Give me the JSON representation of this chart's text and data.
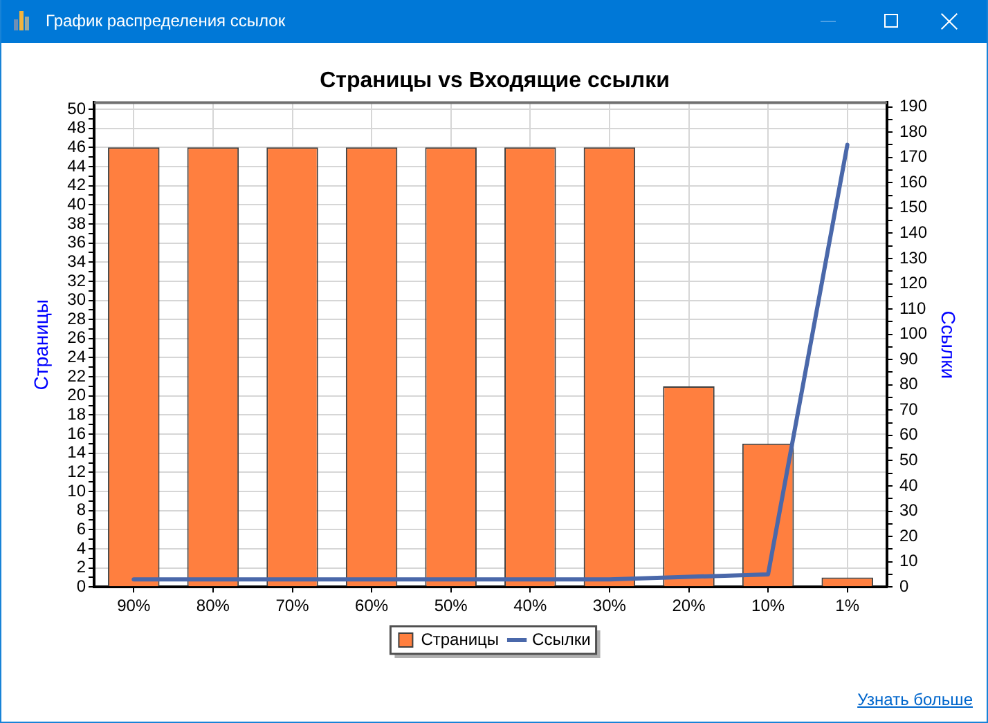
{
  "chart_data": {
    "type": "bar",
    "title": "Страницы vs Входящие ссылки",
    "ylabel": "Страницы",
    "y2label": "Ссылки",
    "categories": [
      "90%",
      "80%",
      "70%",
      "60%",
      "50%",
      "40%",
      "30%",
      "20%",
      "10%",
      "1%"
    ],
    "series": [
      {
        "name": "Страницы",
        "color": "#ff7f3f",
        "values": [
          46,
          46,
          46,
          46,
          46,
          46,
          46,
          21,
          15,
          1
        ]
      },
      {
        "name": "Ссылки",
        "type": "line",
        "axis": "y2",
        "color": "#4a68aa",
        "values": [
          3,
          3,
          3,
          3,
          3,
          3,
          3,
          4,
          5,
          175
        ]
      }
    ],
    "ylim": [
      0,
      50.7
    ],
    "yticks": [
      0,
      {
        "value": 1,
        "label": null
      },
      2,
      {
        "value": 3,
        "label": null
      },
      4,
      {
        "value": 5,
        "label": null
      },
      6,
      {
        "value": 7,
        "label": null
      },
      8,
      {
        "value": 9,
        "label": null
      },
      10,
      {
        "value": 11,
        "label": null
      },
      12,
      {
        "value": 13,
        "label": null
      },
      14,
      {
        "value": 15,
        "label": null
      },
      16,
      {
        "value": 17,
        "label": null
      },
      18,
      {
        "value": 19,
        "label": null
      },
      20,
      {
        "value": 21,
        "label": null
      },
      22,
      {
        "value": 23,
        "label": null
      },
      24,
      {
        "value": 25,
        "label": null
      },
      26,
      {
        "value": 27,
        "label": null
      },
      28,
      {
        "value": 29,
        "label": null
      },
      30,
      {
        "value": 31,
        "label": null
      },
      32,
      {
        "value": 33,
        "label": null
      },
      34,
      {
        "value": 35,
        "label": null
      },
      36,
      {
        "value": 37,
        "label": null
      },
      38,
      {
        "value": 39,
        "label": null
      },
      40,
      {
        "value": 41,
        "label": null
      },
      42,
      {
        "value": 43,
        "label": null
      },
      44,
      {
        "value": 45,
        "label": null
      },
      46,
      {
        "value": 47,
        "label": null
      },
      48,
      {
        "value": 49,
        "label": null
      },
      50
    ],
    "y2lim": [
      0,
      191.7
    ],
    "y2ticks": [
      0,
      {
        "value": 5,
        "label": null
      },
      10,
      {
        "value": 15,
        "label": null
      },
      20,
      {
        "value": 25,
        "label": null
      },
      30,
      {
        "value": 35,
        "label": null
      },
      40,
      {
        "value": 45,
        "label": null
      },
      50,
      {
        "value": 55,
        "label": null
      },
      60,
      {
        "value": 65,
        "label": null
      },
      70,
      {
        "value": 75,
        "label": null
      },
      80,
      {
        "value": 85,
        "label": null
      },
      90,
      {
        "value": 95,
        "label": null
      },
      100,
      {
        "value": 105,
        "label": null
      },
      110,
      {
        "value": 115,
        "label": null
      },
      120,
      {
        "value": 125,
        "label": null
      },
      130,
      {
        "value": 135,
        "label": null
      },
      140,
      {
        "value": 145,
        "label": null
      },
      150,
      {
        "value": 155,
        "label": null
      },
      160,
      {
        "value": 165,
        "label": null
      },
      170,
      {
        "value": 175,
        "label": null
      },
      180,
      {
        "value": 185,
        "label": null
      },
      190
    ],
    "grid": true,
    "legend": "bottom",
    "marker": "none",
    "line_style": "solid",
    "annotations": [
      "График распределения ссылок",
      "Узнать больше"
    ]
  }
}
